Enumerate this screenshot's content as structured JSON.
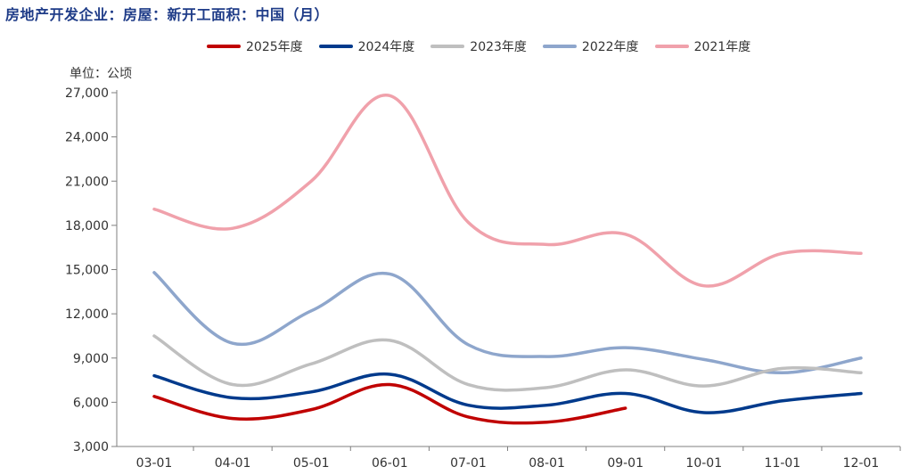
{
  "chart_data": {
    "type": "line",
    "title": "房地产开发企业：房屋：新开工面积：中国（月）",
    "unit_label": "单位：公顷",
    "x": [
      "03-01",
      "04-01",
      "05-01",
      "06-01",
      "07-01",
      "08-01",
      "09-01",
      "10-01",
      "11-01",
      "12-01"
    ],
    "y_ticks": [
      "3,000",
      "6,000",
      "9,000",
      "12,000",
      "15,000",
      "18,000",
      "21,000",
      "24,000",
      "27,000"
    ],
    "ylim": [
      3000,
      27000
    ],
    "grid": false,
    "legend_position": "top",
    "series": [
      {
        "name": "2025年度",
        "color": "#c00000",
        "values": [
          6400,
          4900,
          5500,
          7200,
          5000,
          4650,
          5600,
          null,
          null,
          null
        ]
      },
      {
        "name": "2024年度",
        "color": "#003a8c",
        "values": [
          7800,
          6300,
          6700,
          7900,
          5800,
          5800,
          6600,
          5300,
          6100,
          6600
        ]
      },
      {
        "name": "2023年度",
        "color": "#bfbfbf",
        "values": [
          10500,
          7200,
          8600,
          10200,
          7200,
          7000,
          8200,
          7100,
          8300,
          8000
        ]
      },
      {
        "name": "2022年度",
        "color": "#8ea6cc",
        "values": [
          14800,
          10000,
          12200,
          14700,
          9900,
          9100,
          9700,
          8900,
          8000,
          9000
        ]
      },
      {
        "name": "2021年度",
        "color": "#f0a1ab",
        "values": [
          19100,
          17800,
          21000,
          26800,
          18200,
          16700,
          17400,
          13900,
          16100,
          16100
        ]
      }
    ]
  }
}
